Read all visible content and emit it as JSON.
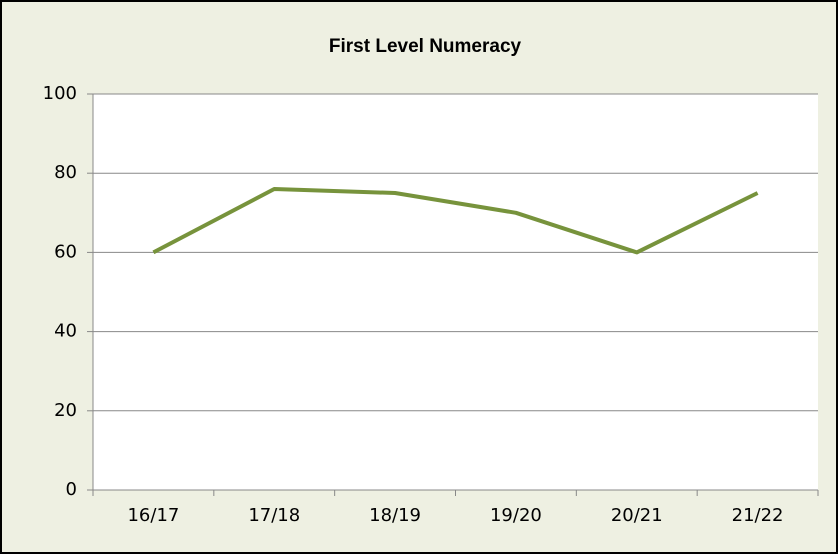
{
  "chart_data": {
    "type": "line",
    "title": "First Level Numeracy",
    "categories": [
      "16/17",
      "17/18",
      "18/19",
      "19/20",
      "20/21",
      "21/22"
    ],
    "values": [
      60,
      76,
      75,
      70,
      60,
      75
    ],
    "color": "#77933c",
    "ylim": [
      0,
      100
    ],
    "yticks": [
      0,
      20,
      40,
      60,
      80,
      100
    ],
    "grid": true
  }
}
